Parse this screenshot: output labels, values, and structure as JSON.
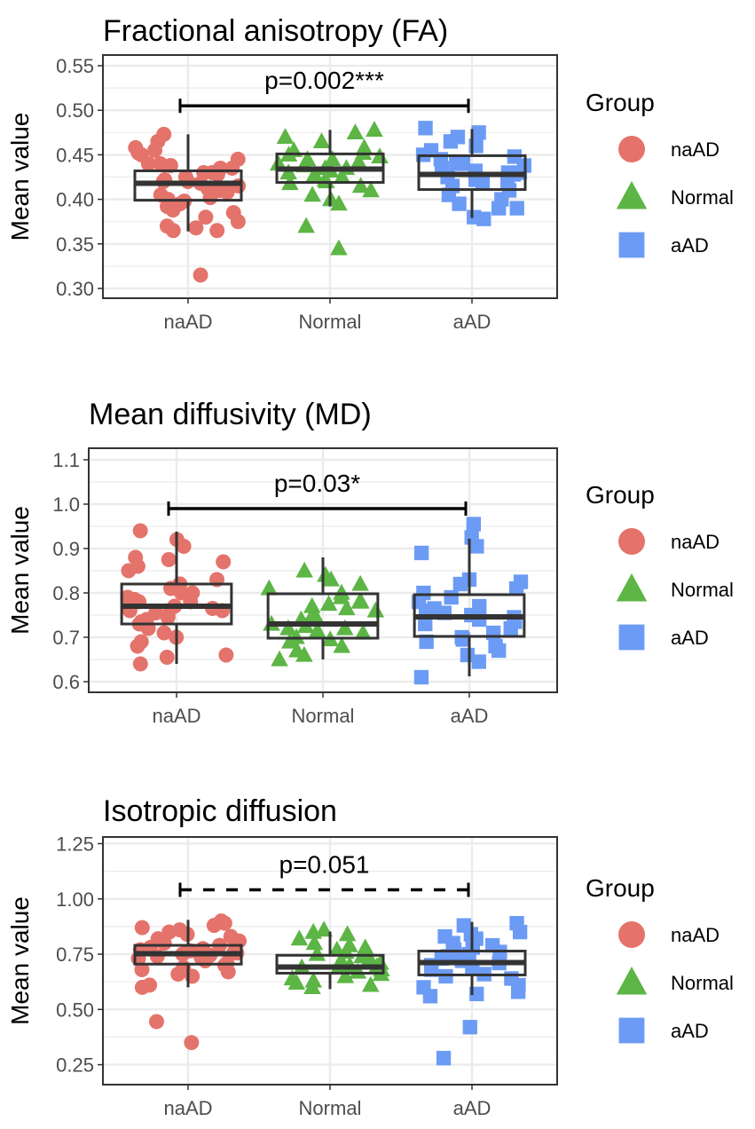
{
  "colors": {
    "naAD": "#E4736B",
    "Normal": "#5CB544",
    "aAD": "#6C9BF5",
    "box": "#333333",
    "grid": "#EBEBEB",
    "tick_text": "#4D4D4D"
  },
  "legend": {
    "title": "Group",
    "items": [
      {
        "label": "naAD",
        "shape": "circle"
      },
      {
        "label": "Normal",
        "shape": "triangle"
      },
      {
        "label": "aAD",
        "shape": "square"
      }
    ]
  },
  "chart_data": [
    {
      "type": "boxplot",
      "title": "Fractional anisotropy (FA)",
      "ylabel": "Mean value",
      "categories": [
        "naAD",
        "Normal",
        "aAD"
      ],
      "yticks": [
        0.3,
        0.35,
        0.4,
        0.45,
        0.5,
        0.55
      ],
      "ytick_labels": [
        "0.30",
        "0.35",
        "0.40",
        "0.45",
        "0.50",
        "0.55"
      ],
      "ylim": [
        0.289,
        0.562
      ],
      "boxes": [
        {
          "group": "naAD",
          "whisker_low": 0.364,
          "q1": 0.399,
          "median": 0.418,
          "q3": 0.432,
          "whisker_high": 0.473
        },
        {
          "group": "Normal",
          "whisker_low": 0.392,
          "q1": 0.419,
          "median": 0.434,
          "q3": 0.451,
          "whisker_high": 0.478
        },
        {
          "group": "aAD",
          "whisker_low": 0.379,
          "q1": 0.411,
          "median": 0.428,
          "q3": 0.449,
          "whisker_high": 0.479
        }
      ],
      "points": {
        "naAD": [
          0.458,
          0.455,
          0.452,
          0.473,
          0.465,
          0.45,
          0.445,
          0.44,
          0.438,
          0.435,
          0.43,
          0.428,
          0.425,
          0.422,
          0.42,
          0.418,
          0.415,
          0.412,
          0.41,
          0.408,
          0.405,
          0.402,
          0.4,
          0.398,
          0.395,
          0.392,
          0.388,
          0.385,
          0.38,
          0.375,
          0.37,
          0.365,
          0.365,
          0.368,
          0.315,
          0.43,
          0.42,
          0.41,
          0.44,
          0.435
        ],
        "Normal": [
          0.478,
          0.475,
          0.47,
          0.465,
          0.458,
          0.455,
          0.452,
          0.45,
          0.448,
          0.445,
          0.442,
          0.44,
          0.438,
          0.435,
          0.432,
          0.43,
          0.428,
          0.425,
          0.422,
          0.42,
          0.418,
          0.415,
          0.41,
          0.405,
          0.4,
          0.395,
          0.37,
          0.345,
          0.445,
          0.435
        ],
        "aAD": [
          0.48,
          0.475,
          0.47,
          0.465,
          0.46,
          0.455,
          0.45,
          0.448,
          0.445,
          0.44,
          0.438,
          0.435,
          0.432,
          0.43,
          0.428,
          0.425,
          0.422,
          0.42,
          0.415,
          0.41,
          0.405,
          0.4,
          0.395,
          0.39,
          0.39,
          0.38,
          0.378,
          0.44,
          0.43,
          0.42
        ]
      },
      "comparison": {
        "from": "naAD",
        "to": "aAD",
        "y": 0.505,
        "label": "p=0.002***",
        "dashed": false
      }
    },
    {
      "type": "boxplot",
      "title": "Mean diffusivity (MD)",
      "ylabel": "Mean value",
      "categories": [
        "naAD",
        "Normal",
        "aAD"
      ],
      "yticks": [
        0.6,
        0.7,
        0.8,
        0.9,
        1.0,
        1.1
      ],
      "ytick_labels": [
        "0.6",
        "0.7",
        "0.8",
        "0.9",
        "1.0",
        "1.1"
      ],
      "ylim": [
        0.576,
        1.126
      ],
      "boxes": [
        {
          "group": "naAD",
          "whisker_low": 0.64,
          "q1": 0.73,
          "median": 0.77,
          "q3": 0.82,
          "whisker_high": 0.938
        },
        {
          "group": "Normal",
          "whisker_low": 0.65,
          "q1": 0.698,
          "median": 0.73,
          "q3": 0.798,
          "whisker_high": 0.88
        },
        {
          "group": "aAD",
          "whisker_low": 0.612,
          "q1": 0.702,
          "median": 0.746,
          "q3": 0.796,
          "whisker_high": 0.922
        }
      ],
      "points": {
        "naAD": [
          0.94,
          0.92,
          0.905,
          0.88,
          0.875,
          0.87,
          0.86,
          0.85,
          0.83,
          0.82,
          0.81,
          0.8,
          0.79,
          0.785,
          0.78,
          0.775,
          0.77,
          0.765,
          0.76,
          0.755,
          0.75,
          0.745,
          0.74,
          0.735,
          0.73,
          0.72,
          0.71,
          0.7,
          0.69,
          0.68,
          0.66,
          0.655,
          0.64,
          0.8,
          0.76,
          0.78
        ],
        "Normal": [
          0.85,
          0.84,
          0.83,
          0.82,
          0.81,
          0.8,
          0.79,
          0.78,
          0.775,
          0.77,
          0.765,
          0.76,
          0.75,
          0.745,
          0.74,
          0.73,
          0.725,
          0.72,
          0.715,
          0.71,
          0.7,
          0.695,
          0.69,
          0.68,
          0.67,
          0.66,
          0.65,
          0.78,
          0.74,
          0.72
        ],
        "aAD": [
          0.955,
          0.925,
          0.905,
          0.89,
          0.83,
          0.825,
          0.82,
          0.81,
          0.8,
          0.79,
          0.78,
          0.77,
          0.765,
          0.76,
          0.755,
          0.75,
          0.745,
          0.74,
          0.735,
          0.73,
          0.72,
          0.71,
          0.7,
          0.695,
          0.69,
          0.68,
          0.67,
          0.66,
          0.645,
          0.61
        ]
      },
      "comparison": {
        "from": "naAD",
        "to": "aAD",
        "y": 0.99,
        "label": "p=0.03*",
        "dashed": false
      }
    },
    {
      "type": "boxplot",
      "title": "Isotropic diffusion",
      "ylabel": "Mean value",
      "categories": [
        "naAD",
        "Normal",
        "aAD"
      ],
      "yticks": [
        0.25,
        0.5,
        0.75,
        1.0,
        1.25
      ],
      "ytick_labels": [
        "0.25",
        "0.50",
        "0.75",
        "1.00",
        "1.25"
      ],
      "ylim": [
        0.16,
        1.28
      ],
      "boxes": [
        {
          "group": "naAD",
          "whisker_low": 0.6,
          "q1": 0.705,
          "median": 0.752,
          "q3": 0.79,
          "whisker_high": 0.905
        },
        {
          "group": "Normal",
          "whisker_low": 0.592,
          "q1": 0.664,
          "median": 0.692,
          "q3": 0.745,
          "whisker_high": 0.852
        },
        {
          "group": "aAD",
          "whisker_low": 0.565,
          "q1": 0.656,
          "median": 0.712,
          "q3": 0.764,
          "whisker_high": 0.896
        }
      ],
      "points": {
        "naAD": [
          0.9,
          0.89,
          0.88,
          0.87,
          0.86,
          0.85,
          0.84,
          0.83,
          0.82,
          0.81,
          0.8,
          0.79,
          0.78,
          0.775,
          0.77,
          0.765,
          0.76,
          0.755,
          0.75,
          0.745,
          0.74,
          0.735,
          0.73,
          0.72,
          0.71,
          0.7,
          0.69,
          0.68,
          0.67,
          0.66,
          0.65,
          0.61,
          0.6,
          0.445,
          0.35
        ],
        "Normal": [
          0.86,
          0.85,
          0.84,
          0.82,
          0.8,
          0.79,
          0.78,
          0.77,
          0.76,
          0.75,
          0.74,
          0.73,
          0.72,
          0.71,
          0.7,
          0.695,
          0.69,
          0.68,
          0.67,
          0.66,
          0.65,
          0.64,
          0.63,
          0.62,
          0.61,
          0.6,
          0.7,
          0.72
        ],
        "aAD": [
          0.89,
          0.88,
          0.85,
          0.84,
          0.83,
          0.82,
          0.8,
          0.79,
          0.78,
          0.77,
          0.76,
          0.75,
          0.74,
          0.73,
          0.72,
          0.71,
          0.7,
          0.69,
          0.68,
          0.66,
          0.65,
          0.64,
          0.61,
          0.6,
          0.58,
          0.57,
          0.56,
          0.42,
          0.28
        ]
      },
      "comparison": {
        "from": "naAD",
        "to": "aAD",
        "y": 1.041,
        "label": "p=0.051",
        "dashed": true
      }
    }
  ]
}
